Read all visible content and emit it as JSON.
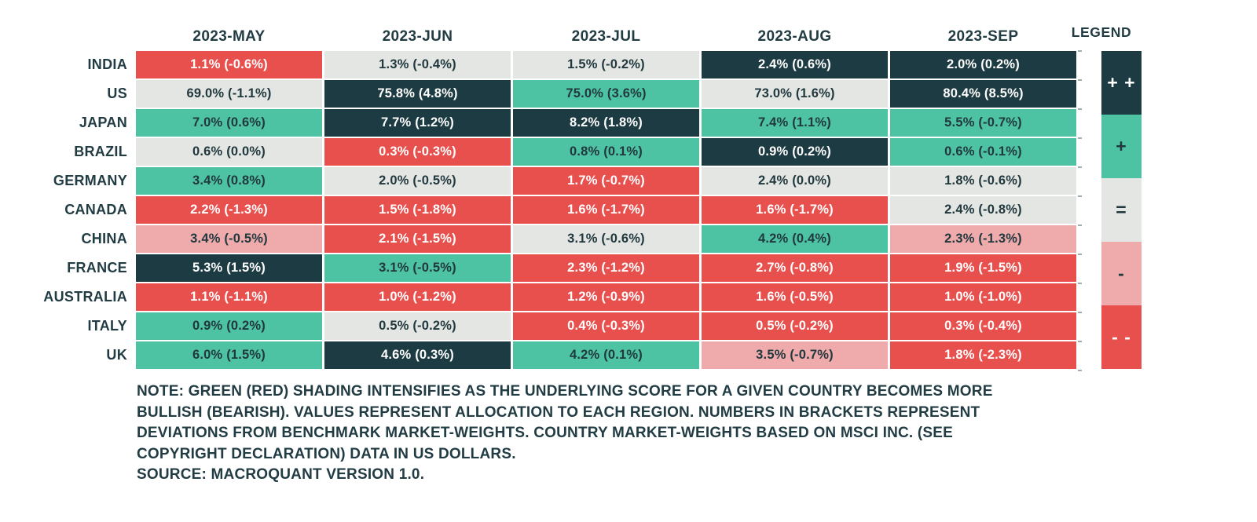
{
  "palette": {
    "++": "#1d3b42",
    "+": "#4ec3a3",
    "=": "#e4e6e3",
    "-": "#efabab",
    "--": "#e8504e",
    "text_light": "#ffffff",
    "text_dark": "#21383e",
    "heading_text": "#223c44"
  },
  "legend": {
    "title": "LEGEND",
    "items": [
      {
        "symbol": "+ +",
        "rating": "++"
      },
      {
        "symbol": "+",
        "rating": "+"
      },
      {
        "symbol": "=",
        "rating": "="
      },
      {
        "symbol": "-",
        "rating": "-"
      },
      {
        "symbol": "- -",
        "rating": "--"
      }
    ]
  },
  "chart_data": {
    "type": "heatmap",
    "title": "",
    "columns": [
      "2023-MAY",
      "2023-JUN",
      "2023-JUL",
      "2023-AUG",
      "2023-SEP"
    ],
    "rows": [
      "INDIA",
      "US",
      "JAPAN",
      "BRAZIL",
      "GERMANY",
      "CANADA",
      "CHINA",
      "FRANCE",
      "AUSTRALIA",
      "ITALY",
      "UK"
    ],
    "rating_scale_bullish_to_bearish": [
      "++",
      "+",
      "=",
      "-",
      "--"
    ],
    "cells": [
      [
        {
          "label": "1.1% (-0.6%)",
          "allocation_pct": 1.1,
          "deviation_pct": -0.6,
          "rating": "--"
        },
        {
          "label": "1.3% (-0.4%)",
          "allocation_pct": 1.3,
          "deviation_pct": -0.4,
          "rating": "="
        },
        {
          "label": "1.5% (-0.2%)",
          "allocation_pct": 1.5,
          "deviation_pct": -0.2,
          "rating": "="
        },
        {
          "label": "2.4% (0.6%)",
          "allocation_pct": 2.4,
          "deviation_pct": 0.6,
          "rating": "++"
        },
        {
          "label": "2.0% (0.2%)",
          "allocation_pct": 2.0,
          "deviation_pct": 0.2,
          "rating": "++"
        }
      ],
      [
        {
          "label": "69.0% (-1.1%)",
          "allocation_pct": 69.0,
          "deviation_pct": -1.1,
          "rating": "="
        },
        {
          "label": "75.8% (4.8%)",
          "allocation_pct": 75.8,
          "deviation_pct": 4.8,
          "rating": "++"
        },
        {
          "label": "75.0% (3.6%)",
          "allocation_pct": 75.0,
          "deviation_pct": 3.6,
          "rating": "+"
        },
        {
          "label": "73.0% (1.6%)",
          "allocation_pct": 73.0,
          "deviation_pct": 1.6,
          "rating": "="
        },
        {
          "label": "80.4% (8.5%)",
          "allocation_pct": 80.4,
          "deviation_pct": 8.5,
          "rating": "++"
        }
      ],
      [
        {
          "label": "7.0% (0.6%)",
          "allocation_pct": 7.0,
          "deviation_pct": 0.6,
          "rating": "+"
        },
        {
          "label": "7.7% (1.2%)",
          "allocation_pct": 7.7,
          "deviation_pct": 1.2,
          "rating": "++"
        },
        {
          "label": "8.2% (1.8%)",
          "allocation_pct": 8.2,
          "deviation_pct": 1.8,
          "rating": "++"
        },
        {
          "label": "7.4% (1.1%)",
          "allocation_pct": 7.4,
          "deviation_pct": 1.1,
          "rating": "+"
        },
        {
          "label": "5.5% (-0.7%)",
          "allocation_pct": 5.5,
          "deviation_pct": -0.7,
          "rating": "+"
        }
      ],
      [
        {
          "label": "0.6% (0.0%)",
          "allocation_pct": 0.6,
          "deviation_pct": 0.0,
          "rating": "="
        },
        {
          "label": "0.3% (-0.3%)",
          "allocation_pct": 0.3,
          "deviation_pct": -0.3,
          "rating": "--"
        },
        {
          "label": "0.8% (0.1%)",
          "allocation_pct": 0.8,
          "deviation_pct": 0.1,
          "rating": "+"
        },
        {
          "label": "0.9% (0.2%)",
          "allocation_pct": 0.9,
          "deviation_pct": 0.2,
          "rating": "++"
        },
        {
          "label": "0.6% (-0.1%)",
          "allocation_pct": 0.6,
          "deviation_pct": -0.1,
          "rating": "+"
        }
      ],
      [
        {
          "label": "3.4% (0.8%)",
          "allocation_pct": 3.4,
          "deviation_pct": 0.8,
          "rating": "+"
        },
        {
          "label": "2.0% (-0.5%)",
          "allocation_pct": 2.0,
          "deviation_pct": -0.5,
          "rating": "="
        },
        {
          "label": "1.7% (-0.7%)",
          "allocation_pct": 1.7,
          "deviation_pct": -0.7,
          "rating": "--"
        },
        {
          "label": "2.4% (0.0%)",
          "allocation_pct": 2.4,
          "deviation_pct": 0.0,
          "rating": "="
        },
        {
          "label": "1.8% (-0.6%)",
          "allocation_pct": 1.8,
          "deviation_pct": -0.6,
          "rating": "="
        }
      ],
      [
        {
          "label": "2.2% (-1.3%)",
          "allocation_pct": 2.2,
          "deviation_pct": -1.3,
          "rating": "--"
        },
        {
          "label": "1.5% (-1.8%)",
          "allocation_pct": 1.5,
          "deviation_pct": -1.8,
          "rating": "--"
        },
        {
          "label": "1.6% (-1.7%)",
          "allocation_pct": 1.6,
          "deviation_pct": -1.7,
          "rating": "--"
        },
        {
          "label": "1.6% (-1.7%)",
          "allocation_pct": 1.6,
          "deviation_pct": -1.7,
          "rating": "--"
        },
        {
          "label": "2.4% (-0.8%)",
          "allocation_pct": 2.4,
          "deviation_pct": -0.8,
          "rating": "="
        }
      ],
      [
        {
          "label": "3.4% (-0.5%)",
          "allocation_pct": 3.4,
          "deviation_pct": -0.5,
          "rating": "-"
        },
        {
          "label": "2.1% (-1.5%)",
          "allocation_pct": 2.1,
          "deviation_pct": -1.5,
          "rating": "--"
        },
        {
          "label": "3.1% (-0.6%)",
          "allocation_pct": 3.1,
          "deviation_pct": -0.6,
          "rating": "="
        },
        {
          "label": "4.2% (0.4%)",
          "allocation_pct": 4.2,
          "deviation_pct": 0.4,
          "rating": "+"
        },
        {
          "label": "2.3% (-1.3%)",
          "allocation_pct": 2.3,
          "deviation_pct": -1.3,
          "rating": "-"
        }
      ],
      [
        {
          "label": "5.3% (1.5%)",
          "allocation_pct": 5.3,
          "deviation_pct": 1.5,
          "rating": "++"
        },
        {
          "label": "3.1% (-0.5%)",
          "allocation_pct": 3.1,
          "deviation_pct": -0.5,
          "rating": "+"
        },
        {
          "label": "2.3% (-1.2%)",
          "allocation_pct": 2.3,
          "deviation_pct": -1.2,
          "rating": "--"
        },
        {
          "label": "2.7% (-0.8%)",
          "allocation_pct": 2.7,
          "deviation_pct": -0.8,
          "rating": "--"
        },
        {
          "label": "1.9% (-1.5%)",
          "allocation_pct": 1.9,
          "deviation_pct": -1.5,
          "rating": "--"
        }
      ],
      [
        {
          "label": "1.1% (-1.1%)",
          "allocation_pct": 1.1,
          "deviation_pct": -1.1,
          "rating": "--"
        },
        {
          "label": "1.0% (-1.2%)",
          "allocation_pct": 1.0,
          "deviation_pct": -1.2,
          "rating": "--"
        },
        {
          "label": "1.2% (-0.9%)",
          "allocation_pct": 1.2,
          "deviation_pct": -0.9,
          "rating": "--"
        },
        {
          "label": "1.6% (-0.5%)",
          "allocation_pct": 1.6,
          "deviation_pct": -0.5,
          "rating": "--"
        },
        {
          "label": "1.0% (-1.0%)",
          "allocation_pct": 1.0,
          "deviation_pct": -1.0,
          "rating": "--"
        }
      ],
      [
        {
          "label": "0.9% (0.2%)",
          "allocation_pct": 0.9,
          "deviation_pct": 0.2,
          "rating": "+"
        },
        {
          "label": "0.5% (-0.2%)",
          "allocation_pct": 0.5,
          "deviation_pct": -0.2,
          "rating": "="
        },
        {
          "label": "0.4% (-0.3%)",
          "allocation_pct": 0.4,
          "deviation_pct": -0.3,
          "rating": "--"
        },
        {
          "label": "0.5% (-0.2%)",
          "allocation_pct": 0.5,
          "deviation_pct": -0.2,
          "rating": "--"
        },
        {
          "label": "0.3% (-0.4%)",
          "allocation_pct": 0.3,
          "deviation_pct": -0.4,
          "rating": "--"
        }
      ],
      [
        {
          "label": "6.0% (1.5%)",
          "allocation_pct": 6.0,
          "deviation_pct": 1.5,
          "rating": "+"
        },
        {
          "label": "4.6% (0.3%)",
          "allocation_pct": 4.6,
          "deviation_pct": 0.3,
          "rating": "++"
        },
        {
          "label": "4.2% (0.1%)",
          "allocation_pct": 4.2,
          "deviation_pct": 0.1,
          "rating": "+"
        },
        {
          "label": "3.5% (-0.7%)",
          "allocation_pct": 3.5,
          "deviation_pct": -0.7,
          "rating": "-"
        },
        {
          "label": "1.8% (-2.3%)",
          "allocation_pct": 1.8,
          "deviation_pct": -2.3,
          "rating": "--"
        }
      ]
    ]
  },
  "note": {
    "lines": [
      "NOTE: GREEN (RED) SHADING INTENSIFIES AS THE UNDERLYING SCORE FOR A GIVEN COUNTRY BECOMES MORE",
      "BULLISH (BEARISH). VALUES REPRESENT ALLOCATION TO EACH REGION. NUMBERS IN BRACKETS REPRESENT",
      "DEVIATIONS FROM BENCHMARK MARKET-WEIGHTS. COUNTRY MARKET-WEIGHTS BASED ON MSCI INC. (SEE",
      "COPYRIGHT DECLARATION) DATA IN US DOLLARS."
    ],
    "source": "SOURCE: MACROQUANT VERSION 1.0."
  }
}
